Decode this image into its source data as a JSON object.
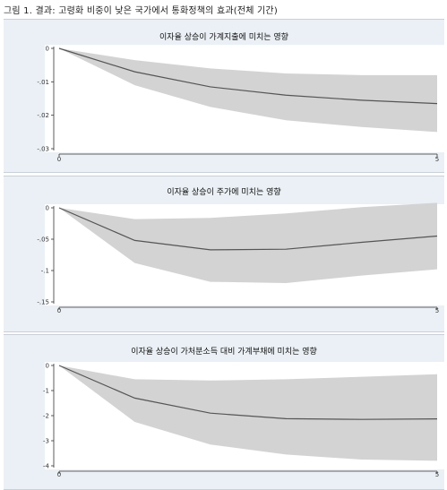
{
  "figure_title": "그림 1. 결과: 고령화 비중이 낮은 국가에서 통화정책의 효과(전체 기간)",
  "colors": {
    "band": "#d3d3d3",
    "line": "#555555",
    "axis": "#333333",
    "panel_bg": "#eaf0f5",
    "plot_bg": "#ffffff"
  },
  "chart_data": [
    {
      "type": "line",
      "title": "이자율 상승이 가계지출에 미치는 영향",
      "x": [
        0,
        1,
        2,
        3,
        4,
        5
      ],
      "xticks": [
        0,
        5
      ],
      "xlim": [
        0,
        5
      ],
      "ylim": [
        -0.03,
        0
      ],
      "yticks": [
        0,
        -0.01,
        -0.02,
        -0.03
      ],
      "ytick_labels": [
        "0",
        "-.01",
        "-.02",
        "-.03"
      ],
      "series": [
        {
          "values": [
            0,
            -0.007,
            -0.0115,
            -0.014,
            -0.0155,
            -0.0165
          ]
        }
      ],
      "band_upper": [
        0,
        -0.0035,
        -0.006,
        -0.0075,
        -0.008,
        -0.008
      ],
      "band_lower": [
        0,
        -0.011,
        -0.0175,
        -0.0215,
        -0.0235,
        -0.025
      ]
    },
    {
      "type": "line",
      "title": "이자율 상승이 주가에 미치는 영향",
      "x": [
        0,
        1,
        2,
        3,
        4,
        5
      ],
      "xticks": [
        0,
        5
      ],
      "xlim": [
        0,
        5
      ],
      "ylim": [
        -0.15,
        0
      ],
      "yticks": [
        0,
        -0.05,
        -0.1,
        -0.15
      ],
      "ytick_labels": [
        "0",
        "-.05",
        "-.1",
        "-.15"
      ],
      "series": [
        {
          "values": [
            0,
            -0.052,
            -0.067,
            -0.066,
            -0.055,
            -0.045
          ]
        }
      ],
      "band_upper": [
        0,
        -0.018,
        -0.016,
        -0.009,
        0.001,
        0.008
      ],
      "band_lower": [
        0,
        -0.088,
        -0.118,
        -0.12,
        -0.108,
        -0.098
      ]
    },
    {
      "type": "line",
      "title": "이자율 상승이 가처분소득 대비 가계부채에 미치는 영향",
      "x": [
        0,
        1,
        2,
        3,
        4,
        5
      ],
      "xticks": [
        0,
        5
      ],
      "xlim": [
        0,
        5
      ],
      "ylim": [
        -4,
        0
      ],
      "yticks": [
        0,
        -1,
        -2,
        -3,
        -4
      ],
      "ytick_labels": [
        "0",
        "-1",
        "-2",
        "-3",
        "-4"
      ],
      "series": [
        {
          "values": [
            0,
            -1.3,
            -1.9,
            -2.12,
            -2.15,
            -2.13
          ]
        }
      ],
      "band_upper": [
        0,
        -0.55,
        -0.6,
        -0.55,
        -0.45,
        -0.35
      ],
      "band_lower": [
        0,
        -2.25,
        -3.15,
        -3.55,
        -3.75,
        -3.8
      ]
    }
  ]
}
